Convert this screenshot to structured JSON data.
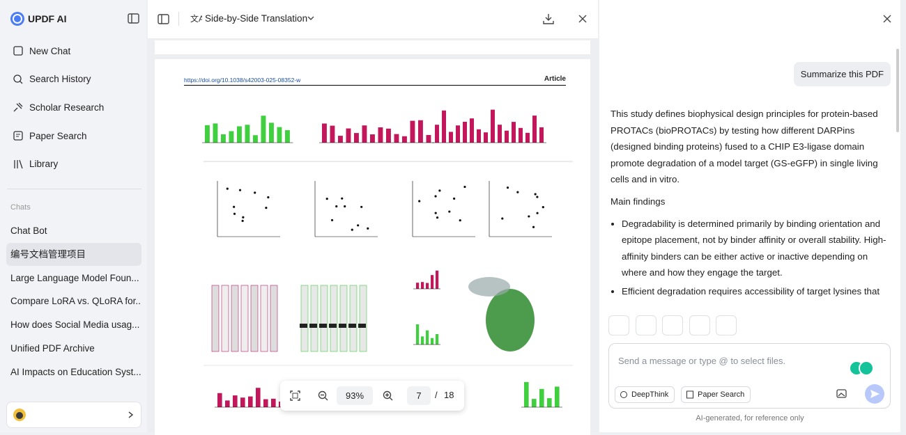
{
  "sidebar": {
    "brand": "UPDF AI",
    "nav": [
      "New Chat",
      "Search History",
      "Scholar Research",
      "Paper Search",
      "Library"
    ],
    "chats_heading": "Chats",
    "chats": [
      "Chat Bot",
      "编号文档管理项目",
      "Large Language Model Foun...",
      "Compare LoRA vs. QLoRA for...",
      "How does Social Media usag...",
      "Unified PDF Archive",
      "AI Impacts on Education Syst..."
    ]
  },
  "toolbar": {
    "mode": "Side-by-Side Translation"
  },
  "pdf": {
    "doi": "https://doi.org/10.1038/s42003-025-08352-w",
    "label": "Article"
  },
  "zoom": {
    "level": "93%",
    "page": 7,
    "separator": "/",
    "total": 18
  },
  "chat": {
    "user_message": "Summarize this PDF",
    "response": "This study defines biophysical design principles for protein-based PROTACs (bioPROTACs) by testing how different DARPins (designed binding proteins) fused to a CHIP E3-ligase domain promote degradation of a model target (GS-eGFP) in single living cells and in vitro.",
    "heading": "Main findings",
    "bullets": [
      "Degradability is determined primarily by binding orientation and epitope placement, not by binder affinity or overall stability. High-affinity binders can be either active or inactive depending on where and how they engage the target.",
      "Efficient degradation requires accessibility of target lysines that"
    ],
    "placeholder": "Send a message or type @ to select files.",
    "buttons": [
      "DeepThink",
      "Paper Search"
    ],
    "footer": "AI-generated, for reference only"
  }
}
